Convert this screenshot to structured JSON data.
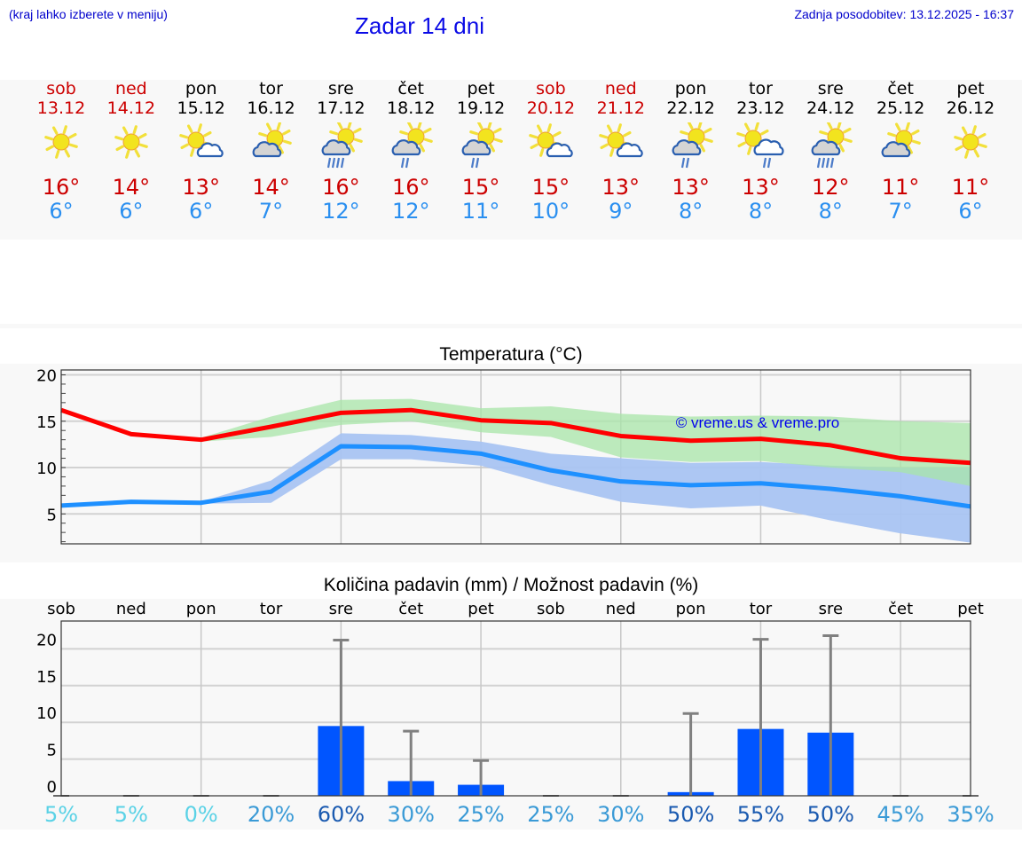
{
  "header": {
    "note": "(kraj lahko izberete v meniju)",
    "title": "Zadar 14 dni",
    "updated": "Zadnja posodobitev: 13.12.2025 - 16:37"
  },
  "days": [
    {
      "name": "sob",
      "date": "13.12",
      "weekend": true,
      "icon": "sunny-icon",
      "tmax": "16°",
      "tmin": "6°"
    },
    {
      "name": "ned",
      "date": "14.12",
      "weekend": true,
      "icon": "sunny-icon",
      "tmax": "14°",
      "tmin": "6°"
    },
    {
      "name": "pon",
      "date": "15.12",
      "weekend": false,
      "icon": "sun-small-cloud-icon",
      "tmax": "13°",
      "tmin": "6°"
    },
    {
      "name": "tor",
      "date": "16.12",
      "weekend": false,
      "icon": "partly-cloudy-icon",
      "tmax": "14°",
      "tmin": "7°"
    },
    {
      "name": "sre",
      "date": "17.12",
      "weekend": false,
      "icon": "partly-cloudy-rain-icon",
      "tmax": "16°",
      "tmin": "12°"
    },
    {
      "name": "čet",
      "date": "18.12",
      "weekend": false,
      "icon": "partly-cloudy-light-rain-icon",
      "tmax": "16°",
      "tmin": "12°"
    },
    {
      "name": "pet",
      "date": "19.12",
      "weekend": false,
      "icon": "partly-cloudy-light-rain-icon",
      "tmax": "15°",
      "tmin": "11°"
    },
    {
      "name": "sob",
      "date": "20.12",
      "weekend": true,
      "icon": "sun-small-cloud-icon",
      "tmax": "15°",
      "tmin": "10°"
    },
    {
      "name": "ned",
      "date": "21.12",
      "weekend": true,
      "icon": "sun-small-cloud-icon",
      "tmax": "13°",
      "tmin": "9°"
    },
    {
      "name": "pon",
      "date": "22.12",
      "weekend": false,
      "icon": "partly-cloudy-light-rain-icon",
      "tmax": "13°",
      "tmin": "8°"
    },
    {
      "name": "tor",
      "date": "23.12",
      "weekend": false,
      "icon": "sun-cloud-light-rain-icon",
      "tmax": "13°",
      "tmin": "8°"
    },
    {
      "name": "sre",
      "date": "24.12",
      "weekend": false,
      "icon": "partly-cloudy-rain-icon",
      "tmax": "12°",
      "tmin": "8°"
    },
    {
      "name": "čet",
      "date": "25.12",
      "weekend": false,
      "icon": "partly-cloudy-icon",
      "tmax": "11°",
      "tmin": "7°"
    },
    {
      "name": "pet",
      "date": "26.12",
      "weekend": false,
      "icon": "sunny-icon",
      "tmax": "11°",
      "tmin": "6°"
    }
  ],
  "colors": {
    "weekend": "#cc0000",
    "weekday": "#000000",
    "tmax": "#cc0000",
    "tmin": "#2a8ff0",
    "max_line": "#ff0000",
    "min_line": "#1e90ff",
    "max_band": "#a8e6a8",
    "min_band": "#a9c4f2",
    "overlap_band": "#7cc6a6",
    "bar": "#0055ff",
    "error_bar": "#808080",
    "watermark": "#0000ee"
  },
  "chart_data": [
    {
      "type": "line",
      "title": "Temperatura (°C)",
      "xlabel": "",
      "ylabel": "°C",
      "ylim": [
        1.7,
        20.5
      ],
      "yticks": [
        5,
        10,
        15,
        20
      ],
      "grid": true,
      "watermark": "© vreme.us & vreme.pro",
      "categories": [
        "13.12",
        "14.12",
        "15.12",
        "16.12",
        "17.12",
        "18.12",
        "19.12",
        "20.12",
        "21.12",
        "22.12",
        "23.12",
        "24.12",
        "25.12",
        "26.12"
      ],
      "series": [
        {
          "name": "Max",
          "color": "#ff0000",
          "values": [
            16.2,
            13.6,
            13.0,
            14.4,
            15.9,
            16.2,
            15.1,
            14.8,
            13.4,
            12.9,
            13.1,
            12.4,
            11.0,
            10.5
          ],
          "band_low": [
            16.2,
            13.5,
            12.8,
            13.3,
            14.6,
            15.0,
            13.8,
            13.3,
            11.1,
            10.6,
            10.7,
            10.0,
            9.5,
            8.0
          ],
          "band_high": [
            16.2,
            13.7,
            13.2,
            15.5,
            17.3,
            17.4,
            16.4,
            16.6,
            15.8,
            15.5,
            15.6,
            15.5,
            15.0,
            14.8
          ]
        },
        {
          "name": "Min",
          "color": "#1e90ff",
          "values": [
            5.9,
            6.3,
            6.2,
            7.4,
            12.3,
            12.2,
            11.5,
            9.7,
            8.5,
            8.1,
            8.3,
            7.7,
            6.9,
            5.8
          ],
          "band_low": [
            5.9,
            6.2,
            6.1,
            6.2,
            10.9,
            10.9,
            10.2,
            8.1,
            6.3,
            5.6,
            5.9,
            4.3,
            2.9,
            1.9
          ],
          "band_high": [
            5.9,
            6.4,
            6.3,
            8.6,
            13.7,
            13.5,
            12.8,
            11.5,
            11.0,
            10.5,
            10.6,
            10.2,
            10.0,
            10.0
          ]
        }
      ]
    },
    {
      "type": "bar",
      "title": "Količina padavin (mm) / Možnost padavin (%)",
      "xlabel": "",
      "ylabel": "mm",
      "ylim": [
        0,
        23.7
      ],
      "yticks": [
        0,
        5,
        10,
        15,
        20
      ],
      "grid": true,
      "categories": [
        "sob",
        "ned",
        "pon",
        "tor",
        "sre",
        "čet",
        "pet",
        "sob",
        "ned",
        "pon",
        "tor",
        "sre",
        "čet",
        "pet"
      ],
      "series": [
        {
          "name": "Količina padavin (mm)",
          "color": "#0055ff",
          "values": [
            0,
            0,
            0,
            0,
            9.5,
            2.0,
            1.5,
            0,
            0,
            0.5,
            9.1,
            8.6,
            0,
            0
          ]
        },
        {
          "name": "Max (error bar)",
          "color": "#808080",
          "values": [
            0,
            0,
            0,
            0,
            21.2,
            8.8,
            4.8,
            0,
            0,
            11.2,
            21.3,
            21.8,
            0,
            0
          ]
        }
      ],
      "probability_percent": [
        5,
        5,
        0,
        20,
        60,
        30,
        25,
        25,
        30,
        50,
        55,
        50,
        45,
        35
      ]
    }
  ],
  "precip": {
    "labels": [
      "5%",
      "5%",
      "0%",
      "20%",
      "60%",
      "30%",
      "25%",
      "25%",
      "30%",
      "50%",
      "55%",
      "50%",
      "45%",
      "35%"
    ]
  }
}
